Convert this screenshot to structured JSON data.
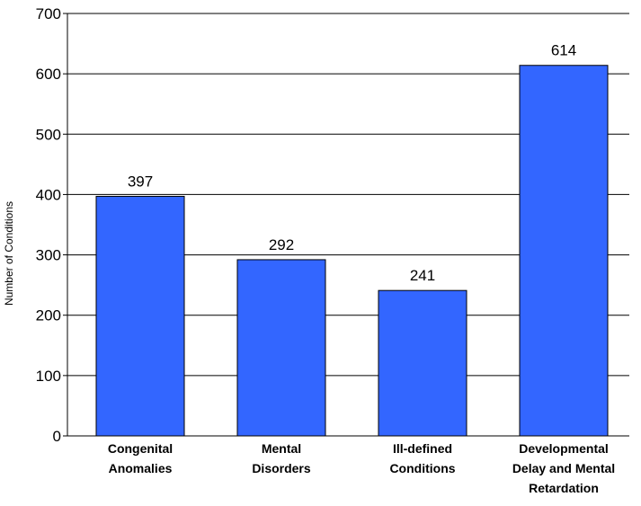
{
  "chart_data": {
    "type": "bar",
    "title": "",
    "xlabel": "",
    "ylabel": "Number of Conditions",
    "ylim": [
      0,
      700
    ],
    "yticks": [
      0,
      100,
      200,
      300,
      400,
      500,
      600,
      700
    ],
    "grid": true,
    "legend": "none",
    "categories": [
      "Congenital Anomalies",
      "Mental Disorders",
      "Ill-defined Conditions",
      "Developmental Delay and Mental Retardation"
    ],
    "category_lines": [
      [
        "Congenital",
        "Anomalies"
      ],
      [
        "Mental",
        "Disorders"
      ],
      [
        "Ill-defined",
        "Conditions"
      ],
      [
        "Developmental",
        "Delay and Mental",
        "Retardation"
      ]
    ],
    "values": [
      397,
      292,
      241,
      614
    ],
    "data_labels": [
      "397",
      "292",
      "241",
      "614"
    ],
    "colors": {
      "bar_fill": "#3366ff",
      "bar_stroke": "#000000",
      "grid": "#000000",
      "axis": "#000000"
    }
  }
}
